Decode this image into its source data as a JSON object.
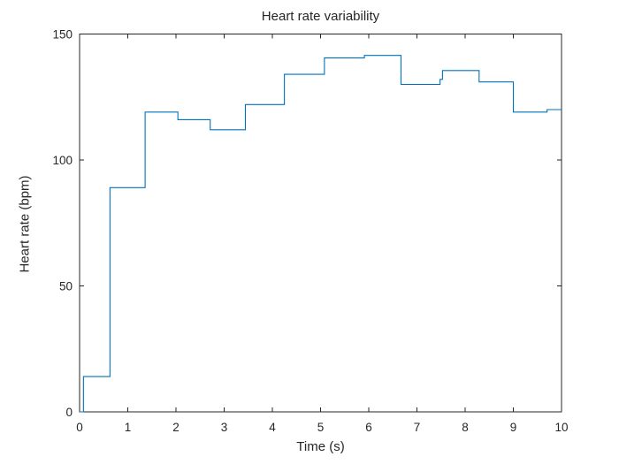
{
  "chart_data": {
    "type": "line",
    "subtype": "stairs",
    "title": "Heart rate variability",
    "xlabel": "Time (s)",
    "ylabel": "Heart rate (bpm)",
    "xlim": [
      0,
      10
    ],
    "ylim": [
      0,
      150
    ],
    "xticks": [
      0,
      1,
      2,
      3,
      4,
      5,
      6,
      7,
      8,
      9,
      10
    ],
    "yticks": [
      0,
      50,
      100,
      150
    ],
    "x": [
      0,
      0.08,
      0.63,
      1.36,
      2.04,
      2.71,
      3.44,
      4.25,
      5.08,
      5.91,
      6.67,
      7.48,
      7.53,
      8.29,
      9.0,
      9.7
    ],
    "y": [
      0,
      14,
      89,
      119,
      116,
      112,
      122,
      134,
      140.5,
      141.5,
      130,
      132,
      135.5,
      131,
      119,
      120
    ],
    "x_end": 10,
    "grid": false,
    "legend_position": "none",
    "line_color": "#0072BD",
    "axis_color": "#262626",
    "background_color": "#ffffff"
  }
}
